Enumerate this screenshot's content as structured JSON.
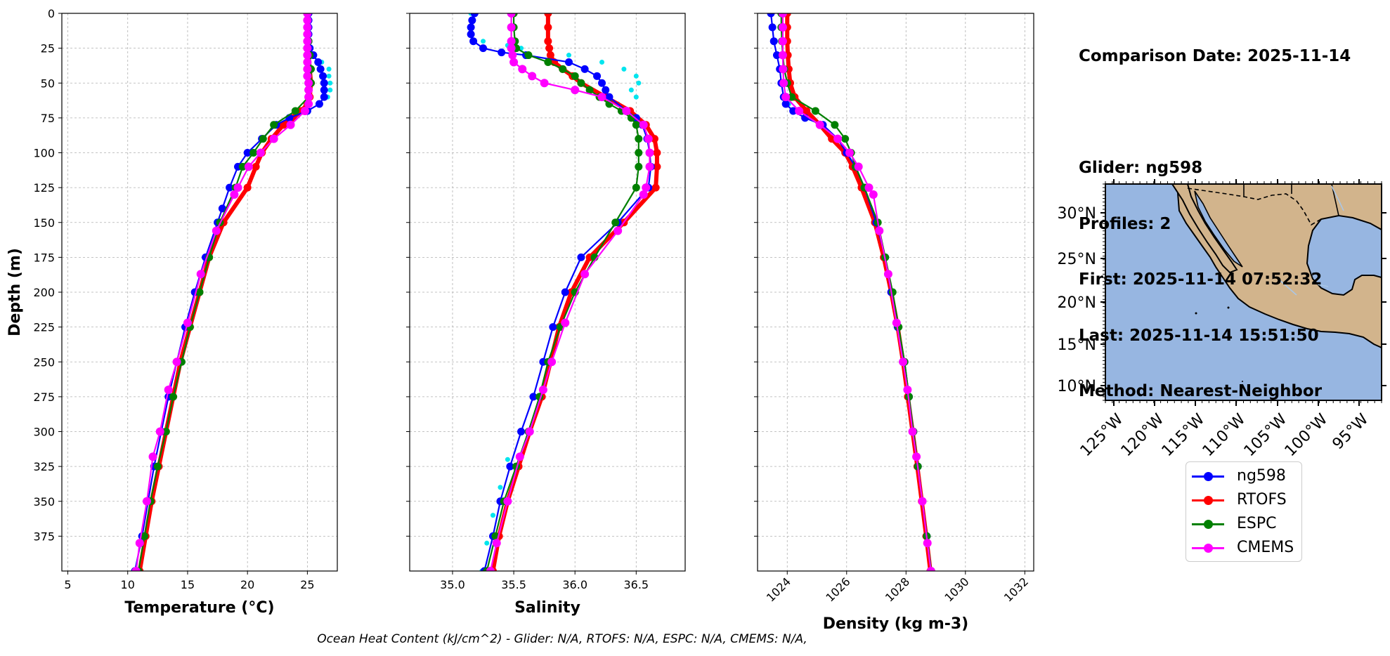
{
  "info": {
    "comparison_date": "Comparison Date: 2025-11-14",
    "glider": "Glider: ng598",
    "profiles": "Profiles: 2",
    "first": "First: 2025-11-14 07:52:32",
    "last": "Last: 2025-11-14 15:51:50",
    "method": "Method: Nearest-Neighbor"
  },
  "footer": "Ocean Heat Content (kJ/cm^2) - Glider: N/A,  RTOFS: N/A,  ESPC: N/A,  CMEMS: N/A,",
  "legend": [
    {
      "label": "ng598",
      "color": "#0000ff"
    },
    {
      "label": "RTOFS",
      "color": "#ff0000"
    },
    {
      "label": "ESPC",
      "color": "#008000"
    },
    {
      "label": "CMEMS",
      "color": "#ff00ff"
    }
  ],
  "colors": {
    "glider": "#0000ff",
    "glider_alt": "#00e5ee",
    "rtofs": "#ff0000",
    "espc": "#008000",
    "cmems": "#ff00ff",
    "ocean": "#97b6e1",
    "land": "#d2b48c",
    "grid": "#b0b0b0"
  },
  "chart_data": [
    {
      "type": "line",
      "xlabel": "Temperature (°C)",
      "ylabel": "Depth (m)",
      "xlim": [
        4.5,
        27.5
      ],
      "ylim": [
        400,
        0
      ],
      "xticks": [
        5,
        10,
        15,
        20,
        25
      ],
      "yticks": [
        0,
        25,
        50,
        75,
        100,
        125,
        150,
        175,
        200,
        225,
        250,
        275,
        300,
        325,
        350,
        375
      ],
      "grid": true,
      "series": [
        {
          "name": "ng598",
          "depth": [
            0,
            5,
            10,
            15,
            20,
            25,
            30,
            35,
            40,
            45,
            50,
            55,
            60,
            65,
            70,
            75,
            80,
            90,
            100,
            110,
            125,
            140,
            150,
            175,
            200,
            225,
            250,
            275,
            300,
            325,
            350,
            375,
            400
          ],
          "values": [
            25.1,
            25.1,
            25.1,
            25.1,
            25.1,
            25.2,
            25.5,
            25.9,
            26.1,
            26.3,
            26.4,
            26.4,
            26.4,
            26.0,
            25.0,
            23.5,
            22.4,
            21.2,
            20.0,
            19.2,
            18.5,
            17.9,
            17.5,
            16.5,
            15.6,
            14.8,
            14.1,
            13.4,
            12.8,
            12.2,
            11.7,
            11.2,
            10.6
          ]
        },
        {
          "name": "ng598 (profile 2)",
          "depth": [
            0,
            10,
            20,
            30,
            35,
            40,
            45,
            50,
            55,
            60,
            65,
            70
          ],
          "values": [
            25.1,
            25.1,
            25.1,
            25.5,
            26.2,
            26.8,
            26.8,
            26.9,
            26.9,
            26.7,
            26.0,
            25.0
          ]
        },
        {
          "name": "RTOFS",
          "depth": [
            0,
            10,
            20,
            30,
            40,
            50,
            60,
            65,
            70,
            75,
            80,
            90,
            100,
            110,
            125,
            150,
            175,
            200,
            225,
            250,
            275,
            300,
            325,
            350,
            375,
            400
          ],
          "values": [
            25.0,
            25.0,
            25.0,
            25.1,
            25.2,
            25.3,
            25.2,
            25.0,
            24.5,
            23.8,
            23.0,
            22.0,
            21.2,
            20.7,
            20.0,
            18.0,
            16.8,
            16.0,
            15.2,
            14.4,
            13.8,
            13.2,
            12.6,
            12.0,
            11.5,
            11.0
          ]
        },
        {
          "name": "ESPC",
          "depth": [
            0,
            10,
            20,
            30,
            40,
            50,
            60,
            70,
            80,
            90,
            100,
            110,
            125,
            150,
            175,
            200,
            225,
            250,
            275,
            300,
            325,
            350,
            375,
            400
          ],
          "values": [
            25.0,
            25.0,
            25.1,
            25.2,
            25.3,
            25.3,
            25.1,
            24.0,
            22.2,
            21.3,
            20.5,
            19.6,
            19.0,
            17.7,
            16.8,
            16.0,
            15.2,
            14.5,
            13.8,
            13.2,
            12.5,
            11.9,
            11.4,
            10.9
          ]
        },
        {
          "name": "CMEMS",
          "depth": [
            0,
            5,
            10,
            15,
            20,
            25,
            30,
            35,
            40,
            45,
            50,
            55,
            60,
            65,
            70,
            80,
            90,
            100,
            110,
            125,
            130,
            156,
            187,
            222,
            250,
            270,
            300,
            318,
            350,
            380,
            400
          ],
          "values": [
            25.0,
            25.0,
            25.0,
            25.0,
            25.0,
            25.0,
            25.0,
            25.0,
            25.0,
            25.0,
            25.1,
            25.1,
            25.1,
            25.1,
            24.8,
            23.6,
            22.2,
            21.1,
            20.1,
            19.2,
            18.9,
            17.4,
            16.1,
            15.0,
            14.1,
            13.4,
            12.7,
            12.1,
            11.6,
            11.0,
            10.7
          ]
        }
      ]
    },
    {
      "type": "line",
      "xlabel": "Salinity",
      "ylim": [
        400,
        0
      ],
      "xlim": [
        34.65,
        36.9
      ],
      "xticks": [
        35.0,
        35.5,
        36.0,
        36.5
      ],
      "grid": true,
      "series": [
        {
          "name": "ng598",
          "depth": [
            0,
            5,
            10,
            15,
            20,
            25,
            28,
            30,
            35,
            40,
            45,
            50,
            55,
            60,
            70,
            75,
            80,
            90,
            100,
            110,
            125,
            150,
            175,
            200,
            225,
            250,
            275,
            300,
            325,
            350,
            375,
            400
          ],
          "values": [
            35.18,
            35.16,
            35.15,
            35.15,
            35.17,
            35.25,
            35.4,
            35.6,
            35.95,
            36.08,
            36.18,
            36.22,
            36.25,
            36.28,
            36.42,
            36.5,
            36.55,
            36.59,
            36.61,
            36.62,
            36.6,
            36.35,
            36.05,
            35.92,
            35.82,
            35.74,
            35.66,
            35.56,
            35.47,
            35.39,
            35.33,
            35.26
          ]
        },
        {
          "name": "ng598 (profile 2)",
          "depth": [
            0,
            10,
            15,
            20,
            23,
            25,
            30,
            35,
            40,
            45,
            50,
            55,
            60,
            65,
            70,
            75,
            80,
            90,
            300,
            320,
            340,
            360,
            380,
            400
          ],
          "values": [
            35.15,
            35.14,
            35.15,
            35.25,
            35.45,
            35.56,
            35.95,
            36.22,
            36.4,
            36.5,
            36.52,
            36.46,
            36.5,
            36.35,
            36.42,
            36.5,
            36.55,
            36.6,
            35.56,
            35.45,
            35.39,
            35.33,
            35.28,
            35.24
          ]
        },
        {
          "name": "RTOFS",
          "depth": [
            0,
            10,
            20,
            25,
            30,
            35,
            40,
            45,
            50,
            60,
            70,
            80,
            90,
            100,
            110,
            125,
            150,
            175,
            200,
            225,
            250,
            275,
            300,
            325,
            350,
            375,
            400
          ],
          "values": [
            35.78,
            35.78,
            35.78,
            35.79,
            35.8,
            35.83,
            35.9,
            35.98,
            36.05,
            36.25,
            36.45,
            36.58,
            36.65,
            36.67,
            36.67,
            36.66,
            36.4,
            36.12,
            35.97,
            35.87,
            35.8,
            35.73,
            35.63,
            35.54,
            35.45,
            35.38,
            35.33
          ]
        },
        {
          "name": "ESPC",
          "depth": [
            0,
            10,
            20,
            25,
            30,
            35,
            40,
            45,
            50,
            55,
            60,
            65,
            70,
            75,
            80,
            90,
            100,
            110,
            125,
            150,
            175,
            200,
            225,
            250,
            275,
            300,
            325,
            350,
            375,
            400
          ],
          "values": [
            35.5,
            35.5,
            35.51,
            35.52,
            35.62,
            35.78,
            35.9,
            36.0,
            36.05,
            36.12,
            36.2,
            36.28,
            36.38,
            36.46,
            36.5,
            36.52,
            36.52,
            36.52,
            36.5,
            36.33,
            36.16,
            36.0,
            35.88,
            35.78,
            35.71,
            35.62,
            35.52,
            35.42,
            35.35,
            35.28
          ]
        },
        {
          "name": "CMEMS",
          "depth": [
            0,
            10,
            20,
            25,
            30,
            35,
            40,
            45,
            50,
            55,
            60,
            70,
            80,
            90,
            100,
            110,
            125,
            130,
            156,
            187,
            222,
            250,
            270,
            300,
            318,
            350,
            380,
            400
          ],
          "values": [
            35.48,
            35.48,
            35.48,
            35.48,
            35.49,
            35.5,
            35.57,
            35.65,
            35.75,
            36.0,
            36.22,
            36.42,
            36.56,
            36.6,
            36.61,
            36.61,
            36.58,
            36.56,
            36.35,
            36.08,
            35.92,
            35.81,
            35.74,
            35.63,
            35.55,
            35.45,
            35.36,
            35.31
          ]
        }
      ]
    },
    {
      "type": "line",
      "xlabel": "Density (kg m-3)",
      "ylim": [
        400,
        0
      ],
      "xlim": [
        1023.0,
        1032.3
      ],
      "xticks": [
        1024,
        1026,
        1028,
        1030,
        1032
      ],
      "grid": true,
      "series": [
        {
          "name": "ng598",
          "depth": [
            0,
            10,
            20,
            30,
            40,
            50,
            60,
            65,
            70,
            75,
            80,
            90,
            100,
            110,
            125,
            150,
            175,
            200,
            225,
            250,
            275,
            300,
            325,
            350,
            375,
            400
          ],
          "values": [
            1023.45,
            1023.5,
            1023.55,
            1023.65,
            1023.75,
            1023.8,
            1023.88,
            1023.95,
            1024.2,
            1024.6,
            1025.2,
            1025.7,
            1026.0,
            1026.3,
            1026.6,
            1027.0,
            1027.3,
            1027.5,
            1027.72,
            1027.95,
            1028.1,
            1028.25,
            1028.4,
            1028.55,
            1028.7,
            1028.85
          ]
        },
        {
          "name": "ng598 (profile 2)",
          "depth": [
            0,
            10,
            20,
            30,
            40,
            50,
            60,
            65,
            70
          ],
          "values": [
            1023.45,
            1023.52,
            1023.6,
            1023.7,
            1023.8,
            1023.85,
            1023.95,
            1024.05,
            1024.3
          ]
        },
        {
          "name": "RTOFS",
          "depth": [
            0,
            10,
            20,
            30,
            40,
            50,
            60,
            70,
            80,
            90,
            100,
            110,
            125,
            150,
            175,
            200,
            225,
            250,
            275,
            300,
            325,
            350,
            375,
            400
          ],
          "values": [
            1024.0,
            1024.0,
            1024.0,
            1024.02,
            1024.05,
            1024.1,
            1024.25,
            1024.65,
            1025.1,
            1025.5,
            1025.95,
            1026.2,
            1026.5,
            1026.95,
            1027.25,
            1027.5,
            1027.72,
            1027.9,
            1028.06,
            1028.22,
            1028.38,
            1028.53,
            1028.68,
            1028.82
          ]
        },
        {
          "name": "ESPC",
          "depth": [
            0,
            10,
            20,
            30,
            40,
            50,
            60,
            70,
            80,
            90,
            100,
            110,
            125,
            150,
            175,
            200,
            225,
            250,
            275,
            300,
            325,
            350,
            375,
            400
          ],
          "values": [
            1023.8,
            1023.8,
            1023.82,
            1023.85,
            1023.9,
            1024.0,
            1024.15,
            1024.95,
            1025.6,
            1025.95,
            1026.15,
            1026.3,
            1026.6,
            1027.05,
            1027.3,
            1027.55,
            1027.75,
            1027.95,
            1028.1,
            1028.25,
            1028.4,
            1028.55,
            1028.7,
            1028.85
          ]
        },
        {
          "name": "CMEMS",
          "depth": [
            0,
            10,
            20,
            30,
            40,
            50,
            60,
            70,
            80,
            90,
            100,
            110,
            125,
            130,
            156,
            187,
            222,
            250,
            270,
            300,
            318,
            350,
            380,
            400
          ],
          "values": [
            1023.85,
            1023.85,
            1023.85,
            1023.85,
            1023.86,
            1023.88,
            1023.95,
            1024.4,
            1025.1,
            1025.7,
            1026.1,
            1026.4,
            1026.75,
            1026.9,
            1027.1,
            1027.4,
            1027.68,
            1027.9,
            1028.05,
            1028.22,
            1028.35,
            1028.55,
            1028.72,
            1028.84
          ]
        }
      ]
    }
  ],
  "map": {
    "lat_labels": [
      "30°N",
      "25°N",
      "20°N",
      "15°N",
      "10°N"
    ],
    "lon_labels": [
      "125°W",
      "120°W",
      "115°W",
      "110°W",
      "105°W",
      "100°W",
      "95°W"
    ]
  }
}
